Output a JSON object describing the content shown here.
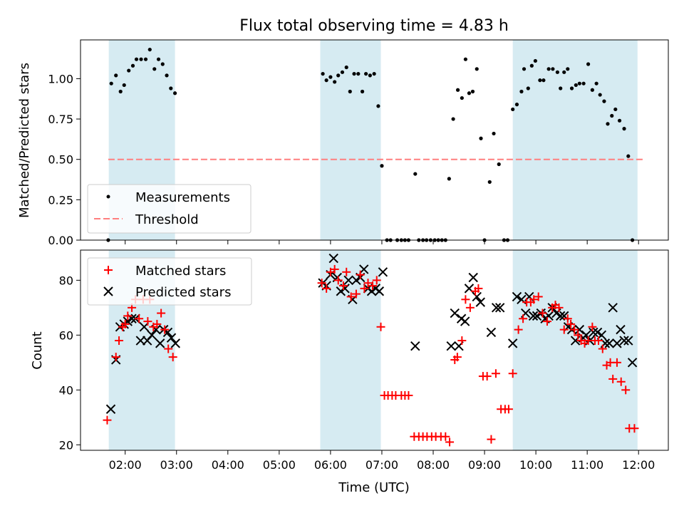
{
  "title": "Flux total observing time = 4.83 h",
  "colors": {
    "shade": "#add8e6",
    "threshold": "#ff7f7f",
    "matched": "#ff0000",
    "predicted": "#000000",
    "measurement": "#000000"
  },
  "chart_data": [
    {
      "type": "scatter",
      "name": "ratio",
      "ylabel": "Matched/Predicted stars",
      "xlim": [
        1.13,
        12.58
      ],
      "ylim": [
        0,
        1.24
      ],
      "yticks": [
        0.0,
        0.25,
        0.5,
        0.75,
        1.0
      ],
      "ytick_labels": [
        "0.00",
        "0.25",
        "0.50",
        "0.75",
        "1.00"
      ],
      "threshold": 0.5,
      "threshold_x": [
        1.67,
        12.08
      ],
      "shaded_intervals": [
        [
          1.68,
          2.97
        ],
        [
          5.8,
          6.98
        ],
        [
          9.55,
          11.98
        ]
      ],
      "legend": {
        "placement": "lower-left",
        "entries": [
          "Measurements",
          "Threshold"
        ]
      },
      "measurements": [
        [
          1.67,
          0.0
        ],
        [
          1.73,
          0.97
        ],
        [
          1.82,
          1.02
        ],
        [
          1.91,
          0.92
        ],
        [
          1.98,
          0.96
        ],
        [
          2.07,
          1.05
        ],
        [
          2.15,
          1.08
        ],
        [
          2.22,
          1.12
        ],
        [
          2.31,
          1.12
        ],
        [
          2.4,
          1.12
        ],
        [
          2.48,
          1.18
        ],
        [
          2.57,
          1.06
        ],
        [
          2.65,
          1.12
        ],
        [
          2.73,
          1.09
        ],
        [
          2.81,
          1.02
        ],
        [
          2.89,
          0.94
        ],
        [
          2.97,
          0.91
        ],
        [
          5.85,
          1.03
        ],
        [
          5.92,
          0.99
        ],
        [
          6.0,
          1.01
        ],
        [
          6.08,
          0.98
        ],
        [
          6.15,
          1.02
        ],
        [
          6.23,
          1.04
        ],
        [
          6.31,
          1.07
        ],
        [
          6.38,
          0.92
        ],
        [
          6.46,
          1.03
        ],
        [
          6.54,
          1.03
        ],
        [
          6.62,
          0.92
        ],
        [
          6.69,
          1.03
        ],
        [
          6.77,
          1.02
        ],
        [
          6.85,
          1.03
        ],
        [
          6.93,
          0.83
        ],
        [
          7.0,
          0.46
        ],
        [
          7.1,
          0.0
        ],
        [
          7.17,
          0.0
        ],
        [
          7.3,
          0.0
        ],
        [
          7.38,
          0.0
        ],
        [
          7.45,
          0.0
        ],
        [
          7.52,
          0.0
        ],
        [
          7.65,
          0.41
        ],
        [
          7.72,
          0.0
        ],
        [
          7.8,
          0.0
        ],
        [
          7.87,
          0.0
        ],
        [
          7.95,
          0.0
        ],
        [
          8.03,
          0.0
        ],
        [
          8.1,
          0.0
        ],
        [
          8.17,
          0.0
        ],
        [
          8.24,
          0.0
        ],
        [
          8.31,
          0.38
        ],
        [
          8.39,
          0.75
        ],
        [
          8.48,
          0.93
        ],
        [
          8.56,
          0.88
        ],
        [
          8.63,
          1.12
        ],
        [
          8.7,
          0.91
        ],
        [
          8.77,
          0.92
        ],
        [
          8.85,
          1.06
        ],
        [
          8.93,
          0.63
        ],
        [
          9.0,
          0.0
        ],
        [
          9.1,
          0.36
        ],
        [
          9.18,
          0.66
        ],
        [
          9.28,
          0.47
        ],
        [
          9.38,
          0.0
        ],
        [
          9.45,
          0.0
        ],
        [
          9.55,
          0.81
        ],
        [
          9.63,
          0.84
        ],
        [
          9.72,
          0.92
        ],
        [
          9.77,
          1.06
        ],
        [
          9.85,
          0.94
        ],
        [
          9.92,
          1.08
        ],
        [
          9.99,
          1.11
        ],
        [
          10.08,
          0.99
        ],
        [
          10.15,
          0.99
        ],
        [
          10.25,
          1.06
        ],
        [
          10.33,
          1.06
        ],
        [
          10.42,
          1.04
        ],
        [
          10.48,
          0.94
        ],
        [
          10.55,
          1.04
        ],
        [
          10.62,
          1.06
        ],
        [
          10.7,
          0.94
        ],
        [
          10.78,
          0.96
        ],
        [
          10.85,
          0.97
        ],
        [
          10.93,
          0.97
        ],
        [
          11.02,
          1.09
        ],
        [
          11.1,
          0.93
        ],
        [
          11.18,
          0.97
        ],
        [
          11.25,
          0.9
        ],
        [
          11.33,
          0.86
        ],
        [
          11.4,
          0.72
        ],
        [
          11.48,
          0.77
        ],
        [
          11.55,
          0.81
        ],
        [
          11.63,
          0.74
        ],
        [
          11.72,
          0.69
        ],
        [
          11.8,
          0.52
        ],
        [
          11.88,
          0.0
        ]
      ]
    },
    {
      "type": "scatter",
      "name": "counts",
      "xlabel": "Time (UTC)",
      "ylabel": "Count",
      "xlim": [
        1.13,
        12.58
      ],
      "ylim": [
        18,
        91
      ],
      "xticks": [
        2,
        3,
        4,
        5,
        6,
        7,
        8,
        9,
        10,
        11,
        12
      ],
      "xtick_labels": [
        "02:00",
        "03:00",
        "04:00",
        "05:00",
        "06:00",
        "07:00",
        "08:00",
        "09:00",
        "10:00",
        "11:00",
        "12:00"
      ],
      "yticks": [
        20,
        40,
        60,
        80
      ],
      "ytick_labels": [
        "20",
        "40",
        "60",
        "80"
      ],
      "shaded_intervals": [
        [
          1.68,
          2.97
        ],
        [
          5.8,
          6.98
        ],
        [
          9.55,
          11.98
        ]
      ],
      "legend": {
        "placement": "upper-left",
        "entries": [
          "Matched stars",
          "Predicted stars"
        ]
      },
      "series": [
        {
          "name": "Matched stars",
          "marker": "+",
          "points": [
            [
              1.65,
              29
            ],
            [
              1.82,
              52
            ],
            [
              1.88,
              58
            ],
            [
              1.95,
              63
            ],
            [
              2.0,
              64
            ],
            [
              2.05,
              67
            ],
            [
              2.13,
              70
            ],
            [
              2.2,
              73
            ],
            [
              2.27,
              66
            ],
            [
              2.35,
              73
            ],
            [
              2.44,
              65
            ],
            [
              2.48,
              73
            ],
            [
              2.55,
              63
            ],
            [
              2.62,
              64
            ],
            [
              2.7,
              68
            ],
            [
              2.77,
              62
            ],
            [
              2.84,
              55
            ],
            [
              2.93,
              52
            ],
            [
              5.83,
              79
            ],
            [
              5.92,
              77
            ],
            [
              6.0,
              83
            ],
            [
              6.08,
              84
            ],
            [
              6.15,
              80
            ],
            [
              6.25,
              78
            ],
            [
              6.31,
              83
            ],
            [
              6.4,
              74
            ],
            [
              6.5,
              75
            ],
            [
              6.58,
              82
            ],
            [
              6.66,
              77
            ],
            [
              6.73,
              79
            ],
            [
              6.82,
              78
            ],
            [
              6.9,
              80
            ],
            [
              6.98,
              63
            ],
            [
              7.05,
              38
            ],
            [
              7.12,
              38
            ],
            [
              7.2,
              38
            ],
            [
              7.27,
              38
            ],
            [
              7.38,
              38
            ],
            [
              7.45,
              38
            ],
            [
              7.52,
              38
            ],
            [
              7.63,
              23
            ],
            [
              7.72,
              23
            ],
            [
              7.8,
              23
            ],
            [
              7.88,
              23
            ],
            [
              7.97,
              23
            ],
            [
              8.05,
              23
            ],
            [
              8.15,
              23
            ],
            [
              8.24,
              23
            ],
            [
              8.32,
              21
            ],
            [
              8.42,
              51
            ],
            [
              8.47,
              52
            ],
            [
              8.56,
              58
            ],
            [
              8.63,
              73
            ],
            [
              8.72,
              70
            ],
            [
              8.82,
              76
            ],
            [
              8.88,
              77
            ],
            [
              8.97,
              45
            ],
            [
              9.05,
              45
            ],
            [
              9.13,
              22
            ],
            [
              9.22,
              46
            ],
            [
              9.32,
              33
            ],
            [
              9.4,
              33
            ],
            [
              9.47,
              33
            ],
            [
              9.55,
              46
            ],
            [
              9.66,
              62
            ],
            [
              9.75,
              66
            ],
            [
              9.82,
              72
            ],
            [
              9.9,
              72
            ],
            [
              9.96,
              73
            ],
            [
              10.05,
              74
            ],
            [
              10.13,
              68
            ],
            [
              10.22,
              65
            ],
            [
              10.32,
              70
            ],
            [
              10.38,
              71
            ],
            [
              10.45,
              70
            ],
            [
              10.55,
              62
            ],
            [
              10.62,
              66
            ],
            [
              10.68,
              64
            ],
            [
              10.75,
              62
            ],
            [
              10.82,
              60
            ],
            [
              10.88,
              58
            ],
            [
              10.95,
              57
            ],
            [
              11.02,
              58
            ],
            [
              11.1,
              63
            ],
            [
              11.15,
              58
            ],
            [
              11.22,
              58
            ],
            [
              11.3,
              55
            ],
            [
              11.38,
              49
            ],
            [
              11.45,
              50
            ],
            [
              11.5,
              44
            ],
            [
              11.58,
              50
            ],
            [
              11.66,
              43
            ],
            [
              11.75,
              40
            ],
            [
              11.82,
              26
            ],
            [
              11.92,
              26
            ]
          ]
        },
        {
          "name": "Predicted stars",
          "marker": "x",
          "points": [
            [
              1.72,
              33
            ],
            [
              1.82,
              51
            ],
            [
              1.9,
              63
            ],
            [
              1.98,
              64
            ],
            [
              2.05,
              65
            ],
            [
              2.13,
              66
            ],
            [
              2.2,
              66
            ],
            [
              2.3,
              58
            ],
            [
              2.37,
              63
            ],
            [
              2.43,
              58
            ],
            [
              2.52,
              60
            ],
            [
              2.6,
              62
            ],
            [
              2.68,
              57
            ],
            [
              2.75,
              62
            ],
            [
              2.83,
              61
            ],
            [
              2.9,
              59
            ],
            [
              2.98,
              57
            ],
            [
              5.85,
              79
            ],
            [
              5.92,
              78
            ],
            [
              6.0,
              82
            ],
            [
              6.06,
              88
            ],
            [
              6.13,
              81
            ],
            [
              6.2,
              76
            ],
            [
              6.28,
              77
            ],
            [
              6.35,
              80
            ],
            [
              6.43,
              73
            ],
            [
              6.5,
              80
            ],
            [
              6.58,
              81
            ],
            [
              6.65,
              84
            ],
            [
              6.73,
              77
            ],
            [
              6.8,
              76
            ],
            [
              6.88,
              77
            ],
            [
              6.95,
              76
            ],
            [
              7.02,
              83
            ],
            [
              7.65,
              56
            ],
            [
              8.35,
              56
            ],
            [
              8.42,
              68
            ],
            [
              8.5,
              56
            ],
            [
              8.55,
              66
            ],
            [
              8.62,
              65
            ],
            [
              8.7,
              77
            ],
            [
              8.78,
              81
            ],
            [
              8.85,
              74
            ],
            [
              8.92,
              72
            ],
            [
              9.13,
              61
            ],
            [
              9.23,
              70
            ],
            [
              9.3,
              70
            ],
            [
              9.55,
              57
            ],
            [
              9.63,
              74
            ],
            [
              9.72,
              73
            ],
            [
              9.8,
              68
            ],
            [
              9.87,
              74
            ],
            [
              9.95,
              67
            ],
            [
              10.02,
              67
            ],
            [
              10.1,
              68
            ],
            [
              10.18,
              66
            ],
            [
              10.25,
              67
            ],
            [
              10.32,
              70
            ],
            [
              10.4,
              68
            ],
            [
              10.48,
              67
            ],
            [
              10.55,
              67
            ],
            [
              10.63,
              63
            ],
            [
              10.7,
              62
            ],
            [
              10.77,
              58
            ],
            [
              10.85,
              62
            ],
            [
              10.92,
              59
            ],
            [
              10.98,
              60
            ],
            [
              11.05,
              58
            ],
            [
              11.12,
              61
            ],
            [
              11.2,
              61
            ],
            [
              11.28,
              60
            ],
            [
              11.35,
              57
            ],
            [
              11.43,
              57
            ],
            [
              11.5,
              70
            ],
            [
              11.58,
              57
            ],
            [
              11.65,
              62
            ],
            [
              11.72,
              58
            ],
            [
              11.8,
              58
            ],
            [
              11.88,
              50
            ]
          ]
        }
      ]
    }
  ]
}
